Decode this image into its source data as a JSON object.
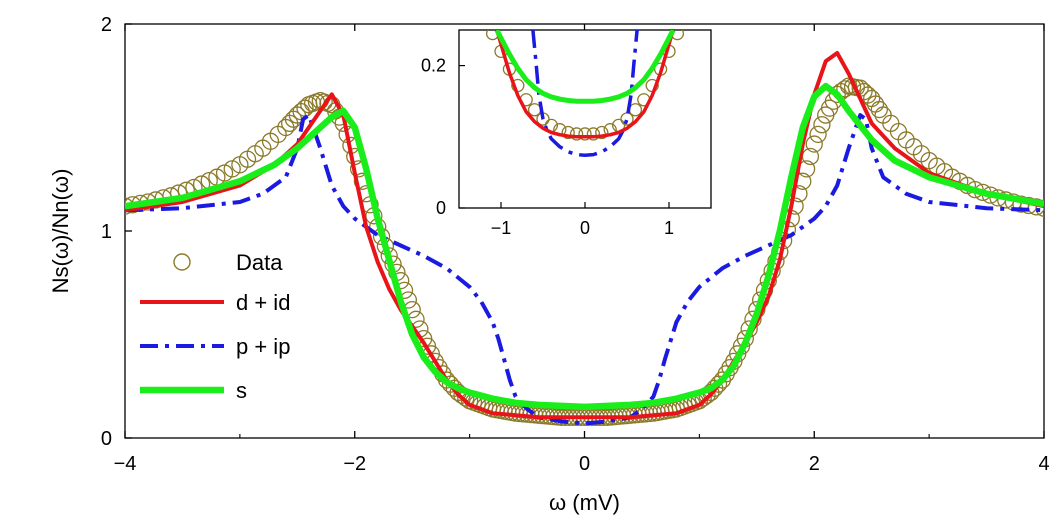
{
  "chart_data": {
    "type": "line",
    "xlabel": "ω (mV)",
    "ylabel": "Ns(ω)/Nn(ω)",
    "xlim": [
      -4,
      4
    ],
    "ylim": [
      0,
      2
    ],
    "xticks": [
      "−4",
      "−2",
      "0",
      "2",
      "4"
    ],
    "yticks": [
      "0",
      "1",
      "2"
    ],
    "grid": false,
    "legend_position": "left",
    "series": [
      {
        "name": "Data",
        "style": "open-circles",
        "color": "#8b7a2a",
        "x": [
          -4.0,
          -3.8,
          -3.6,
          -3.4,
          -3.2,
          -3.0,
          -2.8,
          -2.6,
          -2.5,
          -2.4,
          -2.3,
          -2.2,
          -2.1,
          -2.0,
          -1.9,
          -1.8,
          -1.7,
          -1.6,
          -1.5,
          -1.4,
          -1.3,
          -1.2,
          -1.1,
          -1.0,
          -0.9,
          -0.8,
          -0.7,
          -0.6,
          -0.5,
          -0.4,
          -0.3,
          -0.2,
          -0.1,
          0.0,
          0.1,
          0.2,
          0.3,
          0.4,
          0.5,
          0.6,
          0.7,
          0.8,
          0.9,
          1.0,
          1.1,
          1.2,
          1.3,
          1.4,
          1.5,
          1.6,
          1.7,
          1.8,
          1.9,
          2.0,
          2.1,
          2.2,
          2.3,
          2.4,
          2.5,
          2.6,
          2.8,
          3.0,
          3.2,
          3.4,
          3.6,
          3.8,
          4.0
        ],
        "y": [
          1.12,
          1.14,
          1.17,
          1.21,
          1.26,
          1.32,
          1.4,
          1.5,
          1.56,
          1.61,
          1.63,
          1.61,
          1.52,
          1.36,
          1.18,
          1.02,
          0.88,
          0.76,
          0.62,
          0.48,
          0.37,
          0.28,
          0.22,
          0.18,
          0.16,
          0.14,
          0.13,
          0.12,
          0.115,
          0.11,
          0.105,
          0.1,
          0.1,
          0.1,
          0.1,
          0.1,
          0.105,
          0.11,
          0.115,
          0.12,
          0.13,
          0.14,
          0.16,
          0.18,
          0.22,
          0.28,
          0.37,
          0.48,
          0.62,
          0.76,
          0.9,
          1.06,
          1.24,
          1.42,
          1.56,
          1.66,
          1.7,
          1.69,
          1.64,
          1.56,
          1.44,
          1.34,
          1.26,
          1.2,
          1.16,
          1.13,
          1.11
        ]
      },
      {
        "name": "d + id",
        "style": "solid",
        "color": "#e8141a",
        "x": [
          -4.0,
          -3.5,
          -3.0,
          -2.7,
          -2.5,
          -2.4,
          -2.3,
          -2.2,
          -2.1,
          -2.0,
          -1.9,
          -1.8,
          -1.7,
          -1.6,
          -1.5,
          -1.4,
          -1.3,
          -1.2,
          -1.1,
          -1.0,
          -0.9,
          -0.8,
          -0.6,
          -0.4,
          -0.2,
          0.0,
          0.2,
          0.4,
          0.6,
          0.8,
          0.9,
          1.0,
          1.1,
          1.2,
          1.3,
          1.4,
          1.5,
          1.6,
          1.7,
          1.8,
          1.9,
          2.0,
          2.1,
          2.2,
          2.3,
          2.4,
          2.5,
          2.7,
          3.0,
          3.5,
          4.0
        ],
        "y": [
          1.1,
          1.14,
          1.22,
          1.32,
          1.42,
          1.5,
          1.58,
          1.66,
          1.56,
          1.28,
          1.02,
          0.85,
          0.72,
          0.62,
          0.54,
          0.46,
          0.37,
          0.28,
          0.21,
          0.16,
          0.14,
          0.12,
          0.11,
          0.1,
          0.1,
          0.1,
          0.1,
          0.1,
          0.11,
          0.12,
          0.14,
          0.16,
          0.21,
          0.28,
          0.37,
          0.46,
          0.56,
          0.68,
          0.86,
          1.12,
          1.42,
          1.66,
          1.82,
          1.86,
          1.76,
          1.64,
          1.52,
          1.4,
          1.28,
          1.18,
          1.12
        ]
      },
      {
        "name": "p + ip",
        "style": "dash-dot",
        "color": "#1a1ae0",
        "x": [
          -4.0,
          -3.5,
          -3.0,
          -2.8,
          -2.6,
          -2.5,
          -2.45,
          -2.4,
          -2.3,
          -2.2,
          -2.1,
          -2.0,
          -1.8,
          -1.6,
          -1.4,
          -1.2,
          -1.0,
          -0.9,
          -0.8,
          -0.75,
          -0.7,
          -0.65,
          -0.6,
          -0.5,
          -0.4,
          -0.2,
          0.0,
          0.2,
          0.4,
          0.5,
          0.6,
          0.65,
          0.7,
          0.8,
          0.9,
          1.0,
          1.2,
          1.4,
          1.6,
          1.8,
          2.0,
          2.1,
          2.2,
          2.3,
          2.4,
          2.45,
          2.5,
          2.6,
          2.8,
          3.0,
          3.5,
          4.0
        ],
        "y": [
          1.1,
          1.11,
          1.14,
          1.18,
          1.26,
          1.4,
          1.54,
          1.56,
          1.4,
          1.22,
          1.12,
          1.06,
          0.98,
          0.93,
          0.88,
          0.82,
          0.73,
          0.66,
          0.56,
          0.48,
          0.38,
          0.28,
          0.2,
          0.14,
          0.1,
          0.08,
          0.07,
          0.08,
          0.1,
          0.14,
          0.2,
          0.28,
          0.38,
          0.56,
          0.66,
          0.73,
          0.82,
          0.88,
          0.93,
          0.98,
          1.06,
          1.12,
          1.22,
          1.4,
          1.56,
          1.54,
          1.4,
          1.26,
          1.18,
          1.14,
          1.11,
          1.1
        ]
      },
      {
        "name": "s",
        "style": "solid-thick",
        "color": "#1aee1a",
        "x": [
          -4.0,
          -3.5,
          -3.0,
          -2.7,
          -2.5,
          -2.3,
          -2.2,
          -2.1,
          -2.0,
          -1.9,
          -1.8,
          -1.7,
          -1.6,
          -1.5,
          -1.4,
          -1.3,
          -1.2,
          -1.1,
          -1.0,
          -0.8,
          -0.6,
          -0.4,
          -0.2,
          0.0,
          0.2,
          0.4,
          0.6,
          0.8,
          1.0,
          1.1,
          1.2,
          1.3,
          1.4,
          1.5,
          1.6,
          1.7,
          1.8,
          1.9,
          2.0,
          2.1,
          2.2,
          2.3,
          2.5,
          2.7,
          3.0,
          3.5,
          4.0
        ],
        "y": [
          1.12,
          1.16,
          1.24,
          1.32,
          1.4,
          1.5,
          1.55,
          1.58,
          1.5,
          1.3,
          1.06,
          0.86,
          0.66,
          0.5,
          0.39,
          0.32,
          0.27,
          0.24,
          0.22,
          0.19,
          0.17,
          0.16,
          0.155,
          0.15,
          0.155,
          0.16,
          0.17,
          0.19,
          0.22,
          0.24,
          0.28,
          0.35,
          0.46,
          0.6,
          0.78,
          1.0,
          1.26,
          1.5,
          1.65,
          1.7,
          1.66,
          1.58,
          1.44,
          1.34,
          1.26,
          1.18,
          1.13
        ]
      }
    ],
    "inset": {
      "xlim": [
        -1.5,
        1.5
      ],
      "ylim": [
        0,
        0.25
      ],
      "xticks": [
        "−1",
        "0",
        "1"
      ],
      "yticks": [
        "0",
        "0.2"
      ],
      "series": [
        {
          "name": "Data",
          "style": "open-circles",
          "color": "#8b7a2a",
          "x": [
            -1.1,
            -1.0,
            -0.9,
            -0.8,
            -0.7,
            -0.6,
            -0.5,
            -0.4,
            -0.3,
            -0.2,
            -0.1,
            0.0,
            0.1,
            0.2,
            0.3,
            0.4,
            0.5,
            0.6,
            0.7,
            0.8,
            0.9,
            1.0,
            1.1
          ],
          "y": [
            0.245,
            0.22,
            0.195,
            0.172,
            0.152,
            0.138,
            0.125,
            0.116,
            0.11,
            0.106,
            0.104,
            0.104,
            0.104,
            0.106,
            0.11,
            0.116,
            0.125,
            0.138,
            0.152,
            0.172,
            0.195,
            0.22,
            0.245
          ]
        },
        {
          "name": "d + id",
          "style": "solid",
          "color": "#e8141a",
          "x": [
            -1.05,
            -0.9,
            -0.8,
            -0.7,
            -0.6,
            -0.5,
            -0.4,
            -0.3,
            -0.2,
            -0.1,
            0.0,
            0.1,
            0.2,
            0.3,
            0.4,
            0.5,
            0.6,
            0.7,
            0.8,
            0.9,
            1.05
          ],
          "y": [
            0.25,
            0.19,
            0.158,
            0.135,
            0.121,
            0.112,
            0.106,
            0.103,
            0.101,
            0.1,
            0.1,
            0.1,
            0.101,
            0.103,
            0.106,
            0.112,
            0.121,
            0.135,
            0.158,
            0.19,
            0.25
          ]
        },
        {
          "name": "p + ip",
          "style": "dash-dot",
          "color": "#1a1ae0",
          "x": [
            -0.62,
            -0.58,
            -0.55,
            -0.5,
            -0.45,
            -0.4,
            -0.3,
            -0.2,
            -0.1,
            0.0,
            0.1,
            0.2,
            0.3,
            0.4,
            0.45,
            0.5,
            0.55,
            0.58,
            0.62
          ],
          "y": [
            0.25,
            0.2,
            0.16,
            0.125,
            0.108,
            0.097,
            0.086,
            0.079,
            0.075,
            0.074,
            0.075,
            0.079,
            0.086,
            0.097,
            0.108,
            0.125,
            0.16,
            0.2,
            0.25
          ]
        },
        {
          "name": "s",
          "style": "solid-thick",
          "color": "#1aee1a",
          "x": [
            -1.05,
            -0.9,
            -0.8,
            -0.7,
            -0.6,
            -0.5,
            -0.4,
            -0.3,
            -0.2,
            -0.1,
            0.0,
            0.1,
            0.2,
            0.3,
            0.4,
            0.5,
            0.6,
            0.7,
            0.8,
            0.9,
            1.05
          ],
          "y": [
            0.25,
            0.216,
            0.196,
            0.18,
            0.169,
            0.161,
            0.156,
            0.153,
            0.151,
            0.15,
            0.15,
            0.15,
            0.151,
            0.153,
            0.156,
            0.161,
            0.169,
            0.18,
            0.196,
            0.216,
            0.25
          ]
        }
      ]
    }
  }
}
